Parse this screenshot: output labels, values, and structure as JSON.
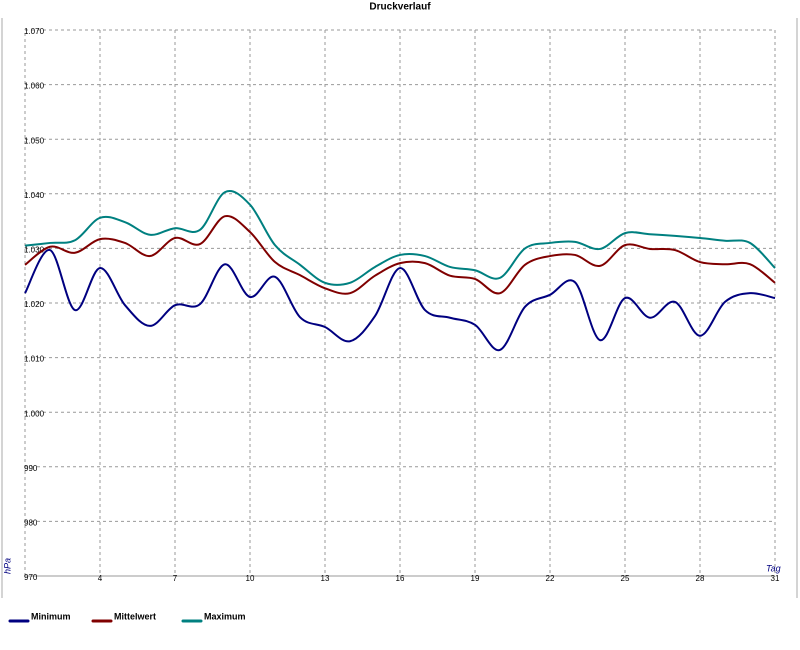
{
  "chart_data": {
    "type": "line",
    "title": "Druckverlauf",
    "x_label": "Tag",
    "y_label": "hPa",
    "x": [
      1,
      2,
      3,
      4,
      5,
      6,
      7,
      8,
      9,
      10,
      11,
      12,
      13,
      14,
      15,
      16,
      17,
      18,
      19,
      20,
      21,
      22,
      23,
      24,
      25,
      26,
      27,
      28,
      29,
      30,
      31
    ],
    "xlim": [
      1,
      31
    ],
    "xticks": [
      4,
      7,
      10,
      13,
      16,
      19,
      22,
      25,
      28,
      31
    ],
    "ylim": [
      970,
      1070
    ],
    "yticks": [
      {
        "value": 970,
        "label": "970"
      },
      {
        "value": 980,
        "label": "980"
      },
      {
        "value": 990,
        "label": "990"
      },
      {
        "value": 1000,
        "label": "1.000"
      },
      {
        "value": 1010,
        "label": "1.010"
      },
      {
        "value": 1020,
        "label": "1.020"
      },
      {
        "value": 1030,
        "label": "1.030"
      },
      {
        "value": 1040,
        "label": "1.040"
      },
      {
        "value": 1050,
        "label": "1.050"
      },
      {
        "value": 1060,
        "label": "1.060"
      },
      {
        "value": 1070,
        "label": "1.070"
      }
    ],
    "grid": true,
    "series": [
      {
        "name": "Minimum",
        "color": "#000080",
        "values": [
          1021.8,
          1029.7,
          1018.7,
          1026.4,
          1019.6,
          1015.8,
          1019.6,
          1019.8,
          1027.1,
          1021.1,
          1024.8,
          1017.4,
          1015.6,
          1013.0,
          1017.6,
          1026.4,
          1018.7,
          1017.3,
          1016.0,
          1011.4,
          1019.3,
          1021.5,
          1023.8,
          1013.2,
          1020.9,
          1017.3,
          1020.2,
          1014.0,
          1020.2,
          1021.8,
          1020.9
        ]
      },
      {
        "name": "Mittelwert",
        "color": "#800000",
        "values": [
          1027.0,
          1030.3,
          1029.2,
          1031.7,
          1031.0,
          1028.6,
          1031.9,
          1030.8,
          1035.9,
          1033.0,
          1027.5,
          1025.1,
          1022.7,
          1021.8,
          1025.0,
          1027.3,
          1027.3,
          1025.0,
          1024.4,
          1021.8,
          1027.0,
          1028.6,
          1028.8,
          1026.8,
          1030.6,
          1029.9,
          1029.7,
          1027.5,
          1027.1,
          1027.1,
          1023.7
        ]
      },
      {
        "name": "Maximum",
        "color": "#008080",
        "values": [
          1030.5,
          1031.0,
          1031.5,
          1035.6,
          1034.8,
          1032.5,
          1033.7,
          1033.4,
          1040.3,
          1038.0,
          1030.6,
          1027.0,
          1023.7,
          1023.7,
          1026.6,
          1028.8,
          1028.6,
          1026.6,
          1026.0,
          1024.6,
          1030.0,
          1031.0,
          1031.2,
          1029.9,
          1032.8,
          1032.6,
          1032.3,
          1031.9,
          1031.4,
          1031.0,
          1026.4
        ]
      }
    ]
  }
}
